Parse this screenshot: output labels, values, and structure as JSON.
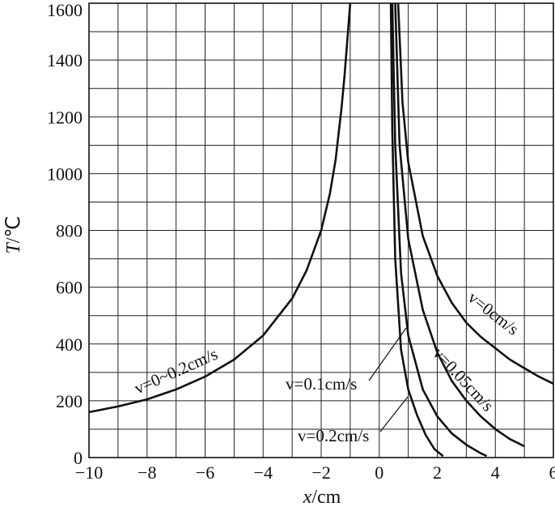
{
  "chart_data": {
    "type": "line",
    "xlabel_var": "x",
    "xlabel_unit": "/cm",
    "ylabel_var": "T",
    "ylabel_unit": "/℃",
    "xlim": [
      -10,
      6
    ],
    "ylim": [
      0,
      1600
    ],
    "x_ticks": [
      -10,
      -8,
      -6,
      -4,
      -2,
      0,
      2,
      4,
      6
    ],
    "x_tick_labels": [
      "−10",
      "−8",
      "−6",
      "−4",
      "−2",
      "0",
      "2",
      "4",
      "6"
    ],
    "y_ticks": [
      0,
      200,
      400,
      600,
      800,
      1000,
      1200,
      1400,
      1600
    ],
    "y_tick_labels": [
      "0",
      "200",
      "400",
      "600",
      "800",
      "1000",
      "1200",
      "1400",
      "1600"
    ],
    "grid": {
      "x_step": 1,
      "y_step": 100
    },
    "series": [
      {
        "name": "v=0~0.2cm/s",
        "points": [
          [
            -10,
            160
          ],
          [
            -9,
            180
          ],
          [
            -8,
            205
          ],
          [
            -7,
            240
          ],
          [
            -6,
            285
          ],
          [
            -5,
            345
          ],
          [
            -4,
            430
          ],
          [
            -3,
            560
          ],
          [
            -2.5,
            660
          ],
          [
            -2,
            800
          ],
          [
            -1.7,
            930
          ],
          [
            -1.5,
            1050
          ],
          [
            -1.3,
            1230
          ],
          [
            -1.2,
            1340
          ],
          [
            -1.1,
            1470
          ],
          [
            -1.0,
            1600
          ]
        ]
      },
      {
        "name": "v=0cm/s",
        "points": [
          [
            0.65,
            1600
          ],
          [
            0.8,
            1250
          ],
          [
            1,
            1040
          ],
          [
            1.5,
            780
          ],
          [
            2,
            640
          ],
          [
            2.5,
            545
          ],
          [
            3,
            475
          ],
          [
            3.5,
            425
          ],
          [
            4,
            385
          ],
          [
            4.5,
            345
          ],
          [
            5,
            315
          ],
          [
            5.5,
            285
          ],
          [
            6,
            260
          ]
        ]
      },
      {
        "name": "v=0.05cm/s",
        "points": [
          [
            0.55,
            1600
          ],
          [
            0.7,
            1100
          ],
          [
            1,
            770
          ],
          [
            1.5,
            520
          ],
          [
            2,
            370
          ],
          [
            2.5,
            270
          ],
          [
            3,
            200
          ],
          [
            3.5,
            145
          ],
          [
            4,
            100
          ],
          [
            4.5,
            65
          ],
          [
            5,
            40
          ]
        ]
      },
      {
        "name": "v=0.1cm/s",
        "points": [
          [
            0.45,
            1600
          ],
          [
            0.55,
            1100
          ],
          [
            0.75,
            650
          ],
          [
            1,
            430
          ],
          [
            1.5,
            240
          ],
          [
            2,
            145
          ],
          [
            2.5,
            85
          ],
          [
            3,
            45
          ],
          [
            3.5,
            15
          ],
          [
            3.7,
            5
          ]
        ]
      },
      {
        "name": "v=0.2cm/s",
        "points": [
          [
            0.4,
            1600
          ],
          [
            0.45,
            1150
          ],
          [
            0.55,
            700
          ],
          [
            0.75,
            380
          ],
          [
            1,
            240
          ],
          [
            1.3,
            150
          ],
          [
            1.6,
            80
          ],
          [
            1.9,
            30
          ],
          [
            2.2,
            5
          ]
        ]
      }
    ]
  },
  "labels": {
    "s_all": "v=0~0.2cm/s",
    "s_0": "v=0cm/s",
    "s_005": "v=0.05cm/s",
    "s_01": "v=0.1cm/s",
    "s_02": "v=0.2cm/s"
  }
}
